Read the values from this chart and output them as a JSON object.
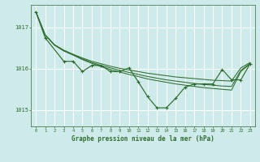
{
  "background_color": "#ceeaea",
  "grid_color": "#ffffff",
  "line_color": "#2d6e2d",
  "title": "Graphe pression niveau de la mer (hPa)",
  "xlim": [
    -0.5,
    23.5
  ],
  "ylim": [
    1014.6,
    1017.55
  ],
  "yticks": [
    1015,
    1016,
    1017
  ],
  "xticks": [
    0,
    1,
    2,
    3,
    4,
    5,
    6,
    7,
    8,
    9,
    10,
    11,
    12,
    13,
    14,
    15,
    16,
    17,
    18,
    19,
    20,
    21,
    22,
    23
  ],
  "series_smooth1": {
    "x": [
      0,
      1,
      2,
      3,
      4,
      5,
      6,
      7,
      8,
      9,
      10,
      11,
      12,
      13,
      14,
      15,
      16,
      17,
      18,
      19,
      20,
      21,
      22,
      23
    ],
    "y": [
      1017.38,
      1016.82,
      1016.58,
      1016.45,
      1016.35,
      1016.26,
      1016.18,
      1016.12,
      1016.06,
      1016.01,
      1015.97,
      1015.93,
      1015.89,
      1015.86,
      1015.83,
      1015.8,
      1015.78,
      1015.76,
      1015.74,
      1015.72,
      1015.71,
      1015.7,
      1016.02,
      1016.15
    ]
  },
  "series_smooth2": {
    "x": [
      0,
      1,
      2,
      3,
      4,
      5,
      6,
      7,
      8,
      9,
      10,
      11,
      12,
      13,
      14,
      15,
      16,
      17,
      18,
      19,
      20,
      21,
      22,
      23
    ],
    "y": [
      1017.38,
      1016.82,
      1016.58,
      1016.44,
      1016.34,
      1016.24,
      1016.15,
      1016.08,
      1016.02,
      1015.96,
      1015.91,
      1015.86,
      1015.81,
      1015.77,
      1015.73,
      1015.7,
      1015.67,
      1015.64,
      1015.62,
      1015.6,
      1015.58,
      1015.57,
      1015.96,
      1016.13
    ]
  },
  "series_smooth3": {
    "x": [
      0,
      1,
      2,
      3,
      4,
      5,
      6,
      7,
      8,
      9,
      10,
      11,
      12,
      13,
      14,
      15,
      16,
      17,
      18,
      19,
      20,
      21,
      22,
      23
    ],
    "y": [
      1017.38,
      1016.82,
      1016.57,
      1016.43,
      1016.33,
      1016.22,
      1016.13,
      1016.05,
      1015.98,
      1015.92,
      1015.86,
      1015.81,
      1015.75,
      1015.71,
      1015.67,
      1015.63,
      1015.6,
      1015.57,
      1015.54,
      1015.52,
      1015.5,
      1015.48,
      1015.93,
      1016.12
    ]
  },
  "series_jagged": {
    "x": [
      0,
      1,
      3,
      4,
      5,
      6,
      7,
      8,
      9,
      10,
      11,
      12,
      13,
      14,
      15,
      16,
      17,
      18,
      19,
      20,
      21,
      22,
      23
    ],
    "y": [
      1017.38,
      1016.75,
      1016.18,
      1016.18,
      1015.93,
      1016.08,
      1016.08,
      1015.93,
      1015.93,
      1016.02,
      1015.68,
      1015.32,
      1015.05,
      1015.05,
      1015.28,
      1015.55,
      1015.63,
      1015.63,
      1015.63,
      1015.98,
      1015.73,
      1015.73,
      1016.12
    ]
  }
}
